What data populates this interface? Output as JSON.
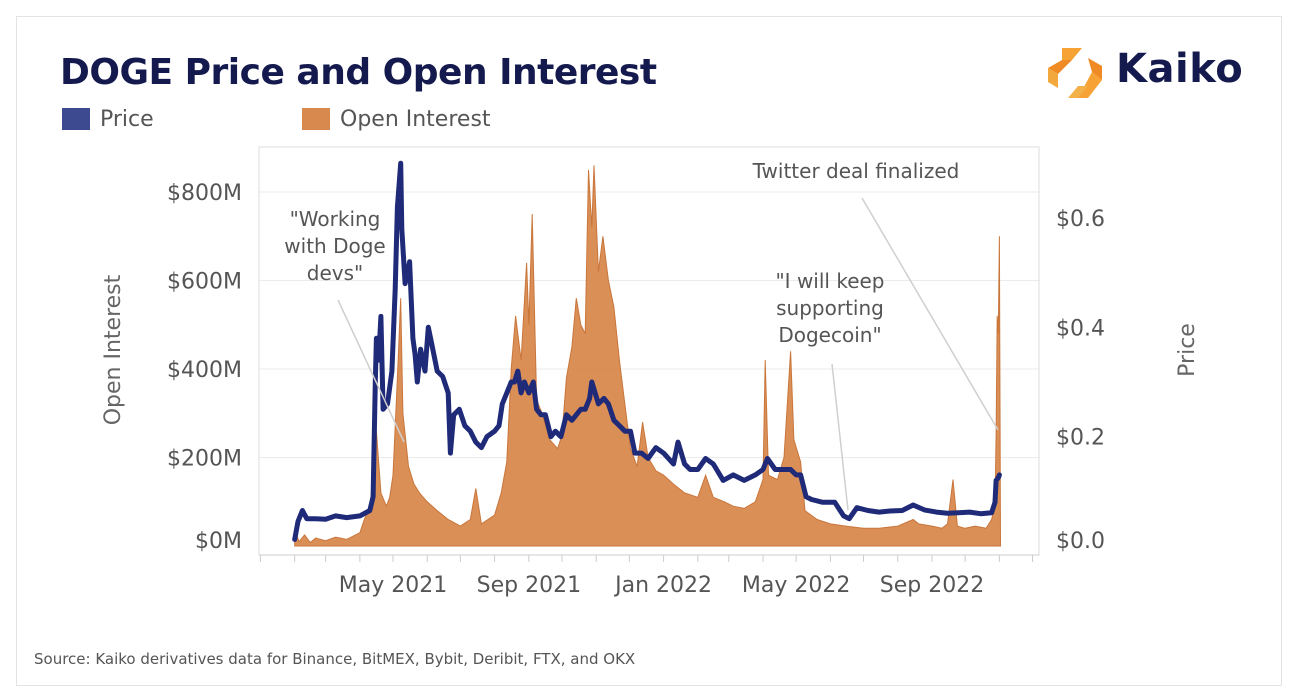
{
  "title": "DOGE Price and Open Interest",
  "logo": {
    "text": "Kaiko",
    "icon": "kaiko-logo-icon",
    "accent": "#f0952a"
  },
  "source": "Source: Kaiko derivatives data for Binance, BitMEX, Bybit, Deribit, FTX, and OKX",
  "colors": {
    "price": "#1f2a78",
    "open_interest": "#d8894e",
    "title": "#141a4e"
  },
  "chart_data": {
    "type": "area",
    "title": "DOGE Price and Open Interest",
    "legend_position": "top-left",
    "grid": true,
    "x_tick_labels": [
      "May 2021",
      "Sep 2021",
      "Jan 2022",
      "May 2022",
      "Sep 2022"
    ],
    "x_range": [
      "2021-01-01",
      "2022-11-30"
    ],
    "y_left": {
      "label": "Open Interest",
      "ticks": [
        "$0M",
        "$200M",
        "$400M",
        "$600M",
        "$800M"
      ],
      "range": [
        0,
        900
      ]
    },
    "y_right": {
      "label": "Price",
      "ticks": [
        "$0.0",
        "$0.2",
        "$0.4",
        "$0.6"
      ],
      "range": [
        0,
        0.73
      ]
    },
    "series": [
      {
        "name": "Open Interest",
        "kind": "area",
        "axis": "left",
        "units": "$M",
        "points": [
          [
            "2021-02-01",
            35
          ],
          [
            "2021-02-05",
            10
          ],
          [
            "2021-02-10",
            25
          ],
          [
            "2021-02-15",
            8
          ],
          [
            "2021-02-20",
            18
          ],
          [
            "2021-03-01",
            12
          ],
          [
            "2021-03-10",
            20
          ],
          [
            "2021-03-20",
            15
          ],
          [
            "2021-04-01",
            30
          ],
          [
            "2021-04-05",
            60
          ],
          [
            "2021-04-10",
            90
          ],
          [
            "2021-04-13",
            150
          ],
          [
            "2021-04-16",
            260
          ],
          [
            "2021-04-20",
            120
          ],
          [
            "2021-04-25",
            90
          ],
          [
            "2021-04-28",
            110
          ],
          [
            "2021-05-01",
            160
          ],
          [
            "2021-05-05",
            380
          ],
          [
            "2021-05-08",
            560
          ],
          [
            "2021-05-10",
            300
          ],
          [
            "2021-05-15",
            180
          ],
          [
            "2021-05-20",
            140
          ],
          [
            "2021-05-25",
            120
          ],
          [
            "2021-06-01",
            100
          ],
          [
            "2021-06-10",
            80
          ],
          [
            "2021-06-20",
            60
          ],
          [
            "2021-07-01",
            45
          ],
          [
            "2021-07-10",
            60
          ],
          [
            "2021-07-15",
            130
          ],
          [
            "2021-07-20",
            50
          ],
          [
            "2021-08-01",
            70
          ],
          [
            "2021-08-07",
            120
          ],
          [
            "2021-08-12",
            190
          ],
          [
            "2021-08-16",
            400
          ],
          [
            "2021-08-20",
            520
          ],
          [
            "2021-08-25",
            420
          ],
          [
            "2021-08-30",
            640
          ],
          [
            "2021-09-01",
            500
          ],
          [
            "2021-09-04",
            750
          ],
          [
            "2021-09-08",
            330
          ],
          [
            "2021-09-13",
            300
          ],
          [
            "2021-09-20",
            240
          ],
          [
            "2021-09-27",
            220
          ],
          [
            "2021-10-01",
            250
          ],
          [
            "2021-10-05",
            380
          ],
          [
            "2021-10-10",
            450
          ],
          [
            "2021-10-14",
            560
          ],
          [
            "2021-10-18",
            500
          ],
          [
            "2021-10-22",
            480
          ],
          [
            "2021-10-25",
            850
          ],
          [
            "2021-10-28",
            720
          ],
          [
            "2021-10-30",
            860
          ],
          [
            "2021-11-03",
            620
          ],
          [
            "2021-11-07",
            700
          ],
          [
            "2021-11-12",
            600
          ],
          [
            "2021-11-17",
            540
          ],
          [
            "2021-11-22",
            420
          ],
          [
            "2021-11-27",
            320
          ],
          [
            "2021-12-02",
            220
          ],
          [
            "2021-12-08",
            180
          ],
          [
            "2021-12-13",
            280
          ],
          [
            "2021-12-18",
            200
          ],
          [
            "2021-12-25",
            170
          ],
          [
            "2022-01-01",
            160
          ],
          [
            "2022-01-10",
            140
          ],
          [
            "2022-01-20",
            120
          ],
          [
            "2022-02-01",
            110
          ],
          [
            "2022-02-08",
            160
          ],
          [
            "2022-02-15",
            110
          ],
          [
            "2022-02-25",
            100
          ],
          [
            "2022-03-05",
            90
          ],
          [
            "2022-03-15",
            85
          ],
          [
            "2022-03-25",
            100
          ],
          [
            "2022-04-01",
            150
          ],
          [
            "2022-04-03",
            420
          ],
          [
            "2022-04-06",
            160
          ],
          [
            "2022-04-14",
            150
          ],
          [
            "2022-04-20",
            200
          ],
          [
            "2022-04-26",
            440
          ],
          [
            "2022-04-29",
            240
          ],
          [
            "2022-05-05",
            190
          ],
          [
            "2022-05-09",
            80
          ],
          [
            "2022-05-20",
            60
          ],
          [
            "2022-06-01",
            50
          ],
          [
            "2022-06-15",
            45
          ],
          [
            "2022-07-01",
            40
          ],
          [
            "2022-07-15",
            40
          ],
          [
            "2022-08-01",
            45
          ],
          [
            "2022-08-15",
            60
          ],
          [
            "2022-08-20",
            50
          ],
          [
            "2022-09-01",
            45
          ],
          [
            "2022-09-10",
            40
          ],
          [
            "2022-09-15",
            50
          ],
          [
            "2022-09-20",
            150
          ],
          [
            "2022-09-24",
            45
          ],
          [
            "2022-10-01",
            40
          ],
          [
            "2022-10-10",
            45
          ],
          [
            "2022-10-20",
            40
          ],
          [
            "2022-10-25",
            60
          ],
          [
            "2022-10-28",
            90
          ],
          [
            "2022-10-29",
            250
          ],
          [
            "2022-10-30",
            520
          ],
          [
            "2022-10-31",
            480
          ],
          [
            "2022-11-01",
            700
          ],
          [
            "2022-11-02",
            0
          ]
        ]
      },
      {
        "name": "Price",
        "kind": "line",
        "axis": "right",
        "units": "$",
        "points": [
          [
            "2021-02-01",
            0.012
          ],
          [
            "2021-02-04",
            0.045
          ],
          [
            "2021-02-08",
            0.065
          ],
          [
            "2021-02-12",
            0.05
          ],
          [
            "2021-02-20",
            0.05
          ],
          [
            "2021-03-01",
            0.049
          ],
          [
            "2021-03-10",
            0.055
          ],
          [
            "2021-03-20",
            0.052
          ],
          [
            "2021-04-01",
            0.055
          ],
          [
            "2021-04-10",
            0.065
          ],
          [
            "2021-04-13",
            0.09
          ],
          [
            "2021-04-15",
            0.3
          ],
          [
            "2021-04-16",
            0.38
          ],
          [
            "2021-04-18",
            0.34
          ],
          [
            "2021-04-20",
            0.42
          ],
          [
            "2021-04-22",
            0.25
          ],
          [
            "2021-04-26",
            0.26
          ],
          [
            "2021-04-30",
            0.32
          ],
          [
            "2021-05-03",
            0.47
          ],
          [
            "2021-05-05",
            0.62
          ],
          [
            "2021-05-08",
            0.7
          ],
          [
            "2021-05-09",
            0.58
          ],
          [
            "2021-05-12",
            0.48
          ],
          [
            "2021-05-14",
            0.5
          ],
          [
            "2021-05-16",
            0.52
          ],
          [
            "2021-05-19",
            0.38
          ],
          [
            "2021-05-21",
            0.35
          ],
          [
            "2021-05-23",
            0.3
          ],
          [
            "2021-05-26",
            0.36
          ],
          [
            "2021-05-30",
            0.32
          ],
          [
            "2021-06-02",
            0.4
          ],
          [
            "2021-06-05",
            0.37
          ],
          [
            "2021-06-10",
            0.32
          ],
          [
            "2021-06-15",
            0.31
          ],
          [
            "2021-06-20",
            0.28
          ],
          [
            "2021-06-22",
            0.17
          ],
          [
            "2021-06-25",
            0.24
          ],
          [
            "2021-06-30",
            0.25
          ],
          [
            "2021-07-05",
            0.22
          ],
          [
            "2021-07-10",
            0.21
          ],
          [
            "2021-07-15",
            0.19
          ],
          [
            "2021-07-20",
            0.18
          ],
          [
            "2021-07-25",
            0.2
          ],
          [
            "2021-08-01",
            0.21
          ],
          [
            "2021-08-05",
            0.22
          ],
          [
            "2021-08-08",
            0.26
          ],
          [
            "2021-08-12",
            0.28
          ],
          [
            "2021-08-16",
            0.3
          ],
          [
            "2021-08-19",
            0.3
          ],
          [
            "2021-08-22",
            0.32
          ],
          [
            "2021-08-25",
            0.28
          ],
          [
            "2021-08-28",
            0.3
          ],
          [
            "2021-09-01",
            0.28
          ],
          [
            "2021-09-05",
            0.3
          ],
          [
            "2021-09-08",
            0.25
          ],
          [
            "2021-09-12",
            0.24
          ],
          [
            "2021-09-16",
            0.24
          ],
          [
            "2021-09-21",
            0.2
          ],
          [
            "2021-09-25",
            0.21
          ],
          [
            "2021-09-30",
            0.2
          ],
          [
            "2021-10-05",
            0.24
          ],
          [
            "2021-10-10",
            0.23
          ],
          [
            "2021-10-14",
            0.24
          ],
          [
            "2021-10-18",
            0.25
          ],
          [
            "2021-10-22",
            0.25
          ],
          [
            "2021-10-26",
            0.27
          ],
          [
            "2021-10-28",
            0.3
          ],
          [
            "2021-10-31",
            0.28
          ],
          [
            "2021-11-03",
            0.26
          ],
          [
            "2021-11-08",
            0.27
          ],
          [
            "2021-11-12",
            0.26
          ],
          [
            "2021-11-17",
            0.23
          ],
          [
            "2021-11-22",
            0.22
          ],
          [
            "2021-11-27",
            0.21
          ],
          [
            "2021-12-02",
            0.21
          ],
          [
            "2021-12-06",
            0.17
          ],
          [
            "2021-12-12",
            0.17
          ],
          [
            "2021-12-18",
            0.16
          ],
          [
            "2021-12-25",
            0.18
          ],
          [
            "2022-01-01",
            0.17
          ],
          [
            "2022-01-10",
            0.15
          ],
          [
            "2022-01-14",
            0.19
          ],
          [
            "2022-01-20",
            0.15
          ],
          [
            "2022-01-25",
            0.14
          ],
          [
            "2022-02-01",
            0.14
          ],
          [
            "2022-02-08",
            0.16
          ],
          [
            "2022-02-15",
            0.15
          ],
          [
            "2022-02-24",
            0.12
          ],
          [
            "2022-03-05",
            0.13
          ],
          [
            "2022-03-15",
            0.12
          ],
          [
            "2022-03-25",
            0.13
          ],
          [
            "2022-04-01",
            0.14
          ],
          [
            "2022-04-05",
            0.16
          ],
          [
            "2022-04-12",
            0.14
          ],
          [
            "2022-04-20",
            0.14
          ],
          [
            "2022-04-26",
            0.14
          ],
          [
            "2022-05-01",
            0.13
          ],
          [
            "2022-05-05",
            0.13
          ],
          [
            "2022-05-10",
            0.09
          ],
          [
            "2022-05-15",
            0.085
          ],
          [
            "2022-05-25",
            0.08
          ],
          [
            "2022-06-05",
            0.08
          ],
          [
            "2022-06-13",
            0.055
          ],
          [
            "2022-06-18",
            0.05
          ],
          [
            "2022-06-25",
            0.07
          ],
          [
            "2022-07-05",
            0.065
          ],
          [
            "2022-07-15",
            0.062
          ],
          [
            "2022-07-25",
            0.064
          ],
          [
            "2022-08-05",
            0.065
          ],
          [
            "2022-08-15",
            0.075
          ],
          [
            "2022-08-25",
            0.066
          ],
          [
            "2022-09-05",
            0.062
          ],
          [
            "2022-09-15",
            0.06
          ],
          [
            "2022-09-25",
            0.061
          ],
          [
            "2022-10-05",
            0.062
          ],
          [
            "2022-10-15",
            0.059
          ],
          [
            "2022-10-25",
            0.061
          ],
          [
            "2022-10-28",
            0.08
          ],
          [
            "2022-10-29",
            0.12
          ],
          [
            "2022-10-31",
            0.125
          ],
          [
            "2022-11-01",
            0.13
          ]
        ]
      }
    ],
    "annotations": [
      {
        "lines": [
          "\"Working",
          "with Doge",
          "devs\""
        ],
        "date": "2021-05-01"
      },
      {
        "lines": [
          "\"I will keep",
          "supporting",
          "Dogecoin\""
        ],
        "date": "2022-05-26"
      },
      {
        "lines": [
          "Twitter deal finalized"
        ],
        "date": "2022-10-28"
      }
    ]
  }
}
